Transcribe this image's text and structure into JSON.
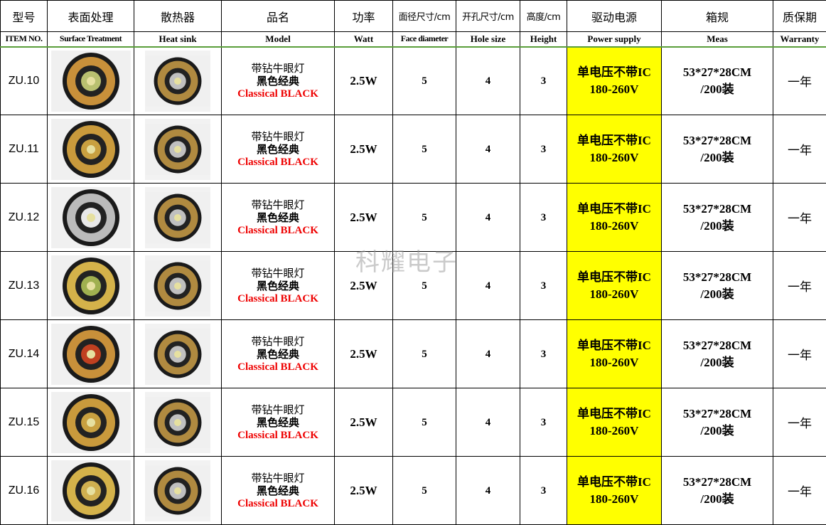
{
  "headers_cn": [
    "型号",
    "表面处理",
    "散热器",
    "品名",
    "功率",
    "面径尺寸/cm",
    "开孔尺寸/cm",
    "高度/cm",
    "驱动电源",
    "箱规",
    "质保期"
  ],
  "headers_en": [
    "ITEM NO.",
    "Surface Treatment",
    "Heat sink",
    "Model",
    "Watt",
    "Face diameter",
    "Hole size",
    "Height",
    "Power supply",
    "Meas",
    "Warranty"
  ],
  "colors": {
    "power_supply_bg": "#ffff00",
    "model_en": "#ee0000",
    "header_line": "#5a9e3a"
  },
  "watermark": "科耀电子",
  "rows": [
    {
      "item": "ZU.10",
      "model_cn1": "带钻牛眼灯",
      "model_cn2": "黑色经典",
      "model_en": "Classical BLACK",
      "watt": "2.5W",
      "face": "5",
      "hole": "4",
      "height": "3",
      "ps1": "单电压不带IC",
      "ps2": "180-260V",
      "meas1": "53*27*28CM",
      "meas2": "/200装",
      "warranty": "一年"
    },
    {
      "item": "ZU.11",
      "model_cn1": "带钻牛眼灯",
      "model_cn2": "黑色经典",
      "model_en": "Classical BLACK",
      "watt": "2.5W",
      "face": "5",
      "hole": "4",
      "height": "3",
      "ps1": "单电压不带IC",
      "ps2": "180-260V",
      "meas1": "53*27*28CM",
      "meas2": "/200装",
      "warranty": "一年"
    },
    {
      "item": "ZU.12",
      "model_cn1": "带钻牛眼灯",
      "model_cn2": "黑色经典",
      "model_en": "Classical BLACK",
      "watt": "2.5W",
      "face": "5",
      "hole": "4",
      "height": "3",
      "ps1": "单电压不带IC",
      "ps2": "180-260V",
      "meas1": "53*27*28CM",
      "meas2": "/200装",
      "warranty": "一年"
    },
    {
      "item": "ZU.13",
      "model_cn1": "带钻牛眼灯",
      "model_cn2": "黑色经典",
      "model_en": "Classical BLACK",
      "watt": "2.5W",
      "face": "5",
      "hole": "4",
      "height": "3",
      "ps1": "单电压不带IC",
      "ps2": "180-260V",
      "meas1": "53*27*28CM",
      "meas2": "/200装",
      "warranty": "一年"
    },
    {
      "item": "ZU.14",
      "model_cn1": "带钻牛眼灯",
      "model_cn2": "黑色经典",
      "model_en": "Classical BLACK",
      "watt": "2.5W",
      "face": "5",
      "hole": "4",
      "height": "3",
      "ps1": "单电压不带IC",
      "ps2": "180-260V",
      "meas1": "53*27*28CM",
      "meas2": "/200装",
      "warranty": "一年"
    },
    {
      "item": "ZU.15",
      "model_cn1": "带钻牛眼灯",
      "model_cn2": "黑色经典",
      "model_en": "Classical BLACK",
      "watt": "2.5W",
      "face": "5",
      "hole": "4",
      "height": "3",
      "ps1": "单电压不带IC",
      "ps2": "180-260V",
      "meas1": "53*27*28CM",
      "meas2": "/200装",
      "warranty": "一年"
    },
    {
      "item": "ZU.16",
      "model_cn1": "带钻牛眼灯",
      "model_cn2": "黑色经典",
      "model_en": "Classical BLACK",
      "watt": "2.5W",
      "face": "5",
      "hole": "4",
      "height": "3",
      "ps1": "单电压不带IC",
      "ps2": "180-260V",
      "meas1": "53*27*28CM",
      "meas2": "/200装",
      "warranty": "一年"
    }
  ]
}
